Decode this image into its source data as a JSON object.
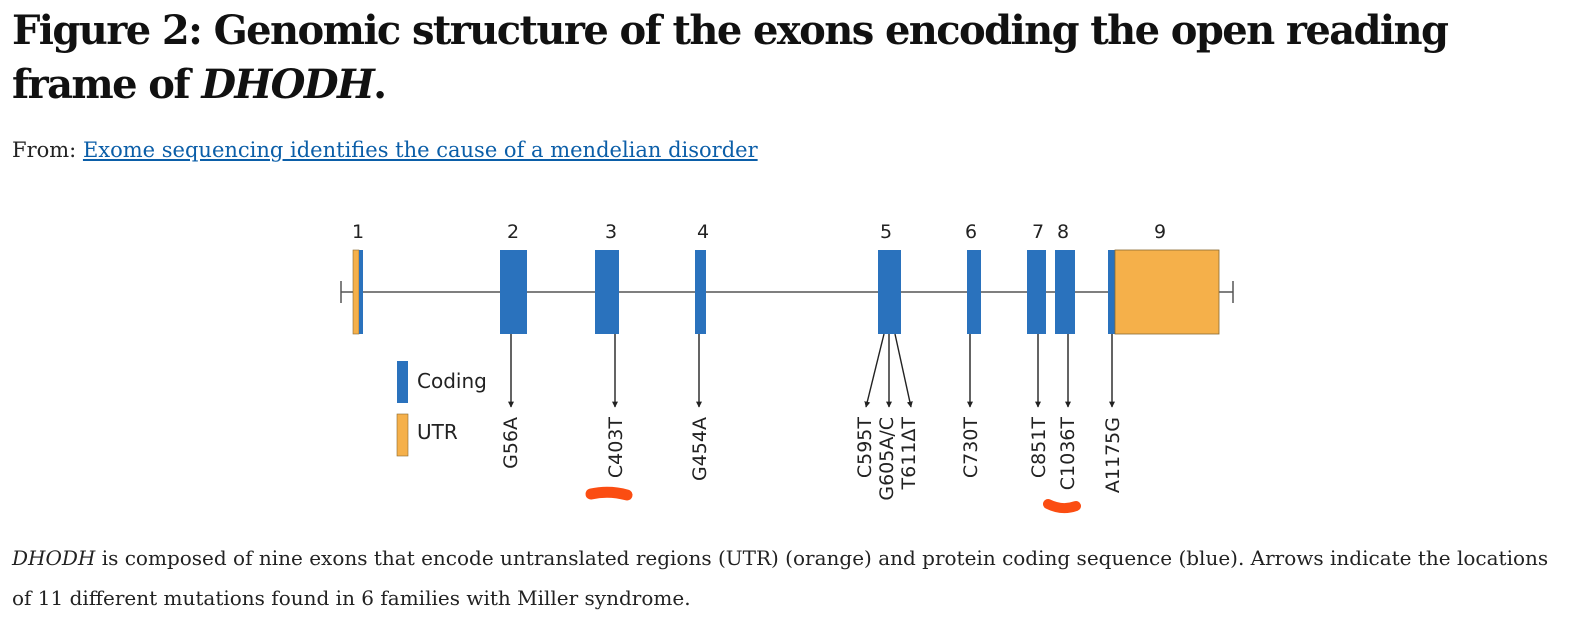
{
  "header": {
    "title_main": "Figure 2: Genomic structure of the exons encoding the open reading frame of",
    "title_gene": "DHODH",
    "title_end": "."
  },
  "source": {
    "prefix": "From:",
    "link_text": "Exome sequencing identifies the cause of a mendelian disorder"
  },
  "diagram": {
    "exon_labels": [
      "1",
      "2",
      "3",
      "4",
      "5",
      "6",
      "7",
      "8",
      "9"
    ],
    "legend": {
      "coding": "Coding",
      "utr": "UTR"
    },
    "mutations": [
      "G56A",
      "C403T",
      "G454A",
      "C595T",
      "G605A/C",
      "T611ΔT",
      "C730T",
      "C851T",
      "C1036T",
      "A1175G"
    ],
    "colors": {
      "coding": "#2a72bd",
      "utr": "#f5b04a",
      "line": "#555555",
      "highlight": "#fb4d12"
    }
  },
  "caption": {
    "gene": "DHODH",
    "text": " is composed of nine exons that encode untranslated regions (UTR) (orange) and protein coding sequence (blue). Arrows indicate the locations of 11 different mutations found in 6 families with Miller syndrome."
  }
}
